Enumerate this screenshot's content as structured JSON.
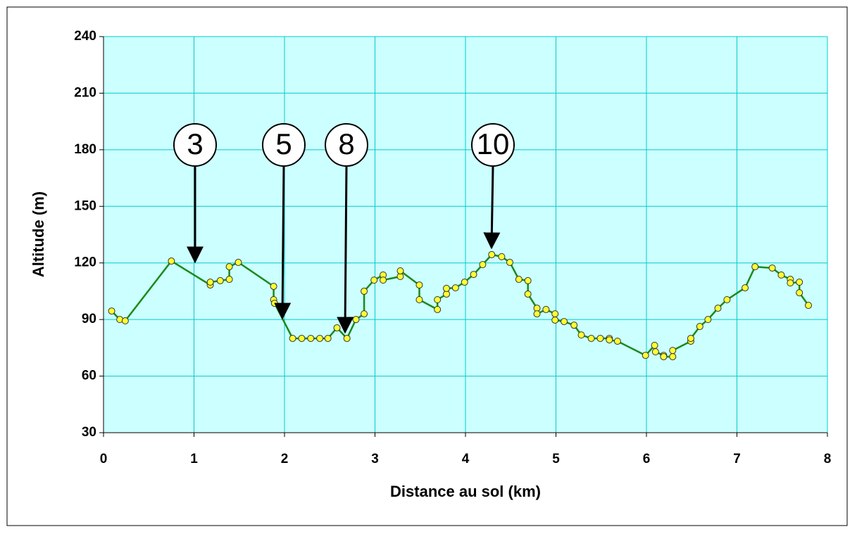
{
  "chart_data": {
    "type": "line",
    "x_label": "Distance au sol (km)",
    "y_label": "Altitude (m)",
    "xlim": [
      0,
      8
    ],
    "xticks": [
      0,
      1,
      2,
      3,
      4,
      5,
      6,
      7,
      8
    ],
    "ylim": [
      30,
      240
    ],
    "yticks": [
      30,
      60,
      90,
      120,
      150,
      180,
      210,
      240
    ],
    "grid": true,
    "color": "#1a8a1a",
    "marker_color": "#ffff33",
    "x": [
      0.09,
      0.18,
      0.24,
      0.75,
      1.18,
      1.18,
      1.29,
      1.39,
      1.39,
      1.49,
      1.88,
      1.88,
      1.89,
      2.09,
      2.19,
      2.29,
      2.39,
      2.48,
      2.58,
      2.69,
      2.79,
      2.88,
      2.88,
      2.99,
      3.09,
      3.09,
      3.28,
      3.28,
      3.49,
      3.49,
      3.69,
      3.69,
      3.79,
      3.79,
      3.89,
      3.99,
      4.09,
      4.19,
      4.29,
      4.4,
      4.49,
      4.59,
      4.69,
      4.69,
      4.79,
      4.79,
      4.89,
      4.99,
      4.99,
      5.09,
      5.2,
      5.28,
      5.39,
      5.49,
      5.59,
      5.59,
      5.68,
      5.99,
      6.09,
      6.1,
      6.19,
      6.19,
      6.29,
      6.29,
      6.49,
      6.49,
      6.59,
      6.68,
      6.79,
      6.89,
      7.09,
      7.2,
      7.39,
      7.49,
      7.59,
      7.59,
      7.69,
      7.69,
      7.79
    ],
    "values": [
      94.5,
      90,
      89.3,
      121,
      108.3,
      109.8,
      110.6,
      111.3,
      118,
      120.3,
      107.6,
      100.5,
      98.6,
      80,
      80,
      80,
      80,
      80,
      85.6,
      80,
      90,
      93,
      105,
      110.9,
      113.6,
      110.9,
      112.8,
      115.8,
      108.3,
      100.5,
      95.3,
      100.5,
      103.5,
      106.5,
      106.8,
      109.8,
      113.9,
      119.1,
      124.4,
      123.3,
      120.3,
      111.3,
      110.6,
      103.5,
      96,
      93,
      95.3,
      93,
      89.7,
      88.9,
      87,
      81.8,
      80,
      80,
      80,
      79.2,
      78.5,
      71,
      76.3,
      72.9,
      71,
      70.3,
      70.3,
      73.6,
      78.5,
      80,
      86.3,
      90,
      96,
      100.5,
      106.8,
      118,
      117.3,
      113.6,
      111.3,
      109.4,
      109.8,
      104.2,
      97.5
    ],
    "annotations": [
      "3",
      "5",
      "8",
      "10"
    ]
  }
}
